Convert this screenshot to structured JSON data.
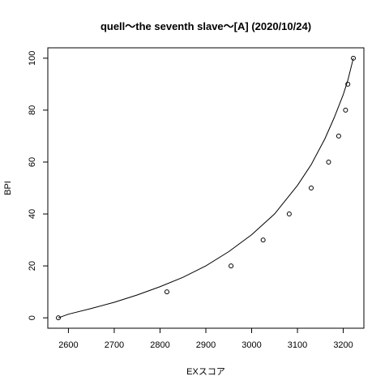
{
  "chart_data": {
    "type": "scatter",
    "title": "quell～the seventh slave～[A] (2020/10/24)",
    "xlabel": "EXスコア",
    "ylabel": "BPI",
    "xlim": [
      2555,
      3245
    ],
    "ylim": [
      -4,
      104
    ],
    "x_ticks": [
      2600,
      2700,
      2800,
      2900,
      3000,
      3100,
      3200
    ],
    "y_ticks": [
      0,
      20,
      40,
      60,
      80,
      100
    ],
    "grid": false,
    "legend": "none",
    "series": [
      {
        "kind": "points",
        "x": [
          2578,
          2815,
          2955,
          3025,
          3082,
          3130,
          3168,
          3190,
          3205,
          3210,
          3222
        ],
        "y": [
          0,
          10,
          20,
          30,
          40,
          50,
          60,
          70,
          80,
          90,
          100
        ]
      },
      {
        "kind": "curve",
        "x": [
          2578,
          2600,
          2650,
          2700,
          2750,
          2800,
          2850,
          2900,
          2950,
          3000,
          3050,
          3100,
          3130,
          3160,
          3180,
          3200,
          3210,
          3222
        ],
        "y": [
          0,
          1.4,
          3.6,
          6.0,
          8.8,
          12.0,
          15.6,
          20.0,
          25.5,
          32.0,
          40.0,
          51.0,
          59.0,
          69.0,
          77.0,
          86.0,
          91.5,
          100
        ]
      }
    ]
  }
}
